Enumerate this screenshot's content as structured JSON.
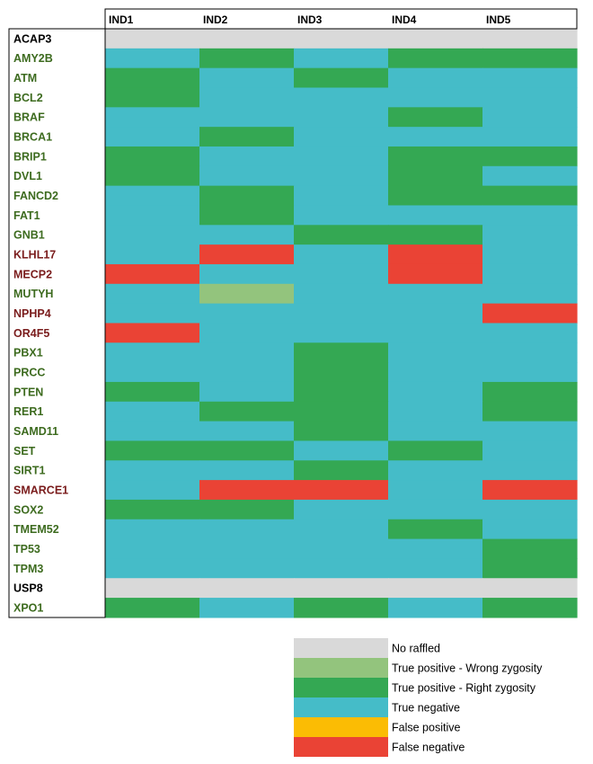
{
  "chart_data": {
    "type": "heatmap",
    "columns": [
      "IND1",
      "IND2",
      "IND3",
      "IND4",
      "IND5"
    ],
    "rows": [
      {
        "gene": "ACAP3",
        "label_color": "#000000",
        "values": [
          "NR",
          "NR",
          "NR",
          "NR",
          "NR"
        ]
      },
      {
        "gene": "AMY2B",
        "label_color": "#3d6b1f",
        "values": [
          "TN",
          "RZ",
          "TN",
          "RZ",
          "RZ"
        ]
      },
      {
        "gene": "ATM",
        "label_color": "#3d6b1f",
        "values": [
          "RZ",
          "TN",
          "RZ",
          "TN",
          "TN"
        ]
      },
      {
        "gene": "BCL2",
        "label_color": "#3d6b1f",
        "values": [
          "RZ",
          "TN",
          "TN",
          "TN",
          "TN"
        ]
      },
      {
        "gene": "BRAF",
        "label_color": "#3d6b1f",
        "values": [
          "TN",
          "TN",
          "TN",
          "RZ",
          "TN"
        ]
      },
      {
        "gene": "BRCA1",
        "label_color": "#3d6b1f",
        "values": [
          "TN",
          "RZ",
          "TN",
          "TN",
          "TN"
        ]
      },
      {
        "gene": "BRIP1",
        "label_color": "#3d6b1f",
        "values": [
          "RZ",
          "TN",
          "TN",
          "RZ",
          "RZ"
        ]
      },
      {
        "gene": "DVL1",
        "label_color": "#3d6b1f",
        "values": [
          "RZ",
          "TN",
          "TN",
          "RZ",
          "TN"
        ]
      },
      {
        "gene": "FANCD2",
        "label_color": "#3d6b1f",
        "values": [
          "TN",
          "RZ",
          "TN",
          "RZ",
          "RZ"
        ]
      },
      {
        "gene": "FAT1",
        "label_color": "#3d6b1f",
        "values": [
          "TN",
          "RZ",
          "TN",
          "TN",
          "TN"
        ]
      },
      {
        "gene": "GNB1",
        "label_color": "#3d6b1f",
        "values": [
          "TN",
          "TN",
          "RZ",
          "RZ",
          "TN"
        ]
      },
      {
        "gene": "KLHL17",
        "label_color": "#7a1c1c",
        "values": [
          "TN",
          "FN",
          "TN",
          "FN",
          "TN"
        ]
      },
      {
        "gene": "MECP2",
        "label_color": "#7a1c1c",
        "values": [
          "FN",
          "TN",
          "TN",
          "FN",
          "TN"
        ]
      },
      {
        "gene": "MUTYH",
        "label_color": "#3d6b1f",
        "values": [
          "TN",
          "WZ",
          "TN",
          "TN",
          "TN"
        ]
      },
      {
        "gene": "NPHP4",
        "label_color": "#7a1c1c",
        "values": [
          "TN",
          "TN",
          "TN",
          "TN",
          "FN"
        ]
      },
      {
        "gene": "OR4F5",
        "label_color": "#7a1c1c",
        "values": [
          "FN",
          "TN",
          "TN",
          "TN",
          "TN"
        ]
      },
      {
        "gene": "PBX1",
        "label_color": "#3d6b1f",
        "values": [
          "TN",
          "TN",
          "RZ",
          "TN",
          "TN"
        ]
      },
      {
        "gene": "PRCC",
        "label_color": "#3d6b1f",
        "values": [
          "TN",
          "TN",
          "RZ",
          "TN",
          "TN"
        ]
      },
      {
        "gene": "PTEN",
        "label_color": "#3d6b1f",
        "values": [
          "RZ",
          "TN",
          "RZ",
          "TN",
          "RZ"
        ]
      },
      {
        "gene": "RER1",
        "label_color": "#3d6b1f",
        "values": [
          "TN",
          "RZ",
          "RZ",
          "TN",
          "RZ"
        ]
      },
      {
        "gene": "SAMD11",
        "label_color": "#3d6b1f",
        "values": [
          "TN",
          "TN",
          "RZ",
          "TN",
          "TN"
        ]
      },
      {
        "gene": "SET",
        "label_color": "#3d6b1f",
        "values": [
          "RZ",
          "RZ",
          "TN",
          "RZ",
          "TN"
        ]
      },
      {
        "gene": "SIRT1",
        "label_color": "#3d6b1f",
        "values": [
          "TN",
          "TN",
          "RZ",
          "TN",
          "TN"
        ]
      },
      {
        "gene": "SMARCE1",
        "label_color": "#7a1c1c",
        "values": [
          "TN",
          "FN",
          "FN",
          "TN",
          "FN"
        ]
      },
      {
        "gene": "SOX2",
        "label_color": "#3d6b1f",
        "values": [
          "RZ",
          "RZ",
          "TN",
          "TN",
          "TN"
        ]
      },
      {
        "gene": "TMEM52",
        "label_color": "#3d6b1f",
        "values": [
          "TN",
          "TN",
          "TN",
          "RZ",
          "TN"
        ]
      },
      {
        "gene": "TP53",
        "label_color": "#3d6b1f",
        "values": [
          "TN",
          "TN",
          "TN",
          "TN",
          "RZ"
        ]
      },
      {
        "gene": "TPM3",
        "label_color": "#3d6b1f",
        "values": [
          "TN",
          "TN",
          "TN",
          "TN",
          "RZ"
        ]
      },
      {
        "gene": "USP8",
        "label_color": "#000000",
        "values": [
          "NR",
          "NR",
          "NR",
          "NR",
          "NR"
        ]
      },
      {
        "gene": "XPO1",
        "label_color": "#3d6b1f",
        "values": [
          "RZ",
          "TN",
          "RZ",
          "TN",
          "RZ"
        ]
      }
    ],
    "categories": [
      {
        "code": "NR",
        "label": "No raffled",
        "color": "#d9d9d9"
      },
      {
        "code": "WZ",
        "label": "True positive - Wrong zygosity",
        "color": "#93c47d"
      },
      {
        "code": "RZ",
        "label": "True positive - Right zygosity",
        "color": "#34a853"
      },
      {
        "code": "TN",
        "label": "True negative",
        "color": "#45bcc8"
      },
      {
        "code": "FP",
        "label": "False positive",
        "color": "#fbbc04"
      },
      {
        "code": "FN",
        "label": "False negative",
        "color": "#ea4335"
      }
    ],
    "legend_position": "bottom-right"
  }
}
